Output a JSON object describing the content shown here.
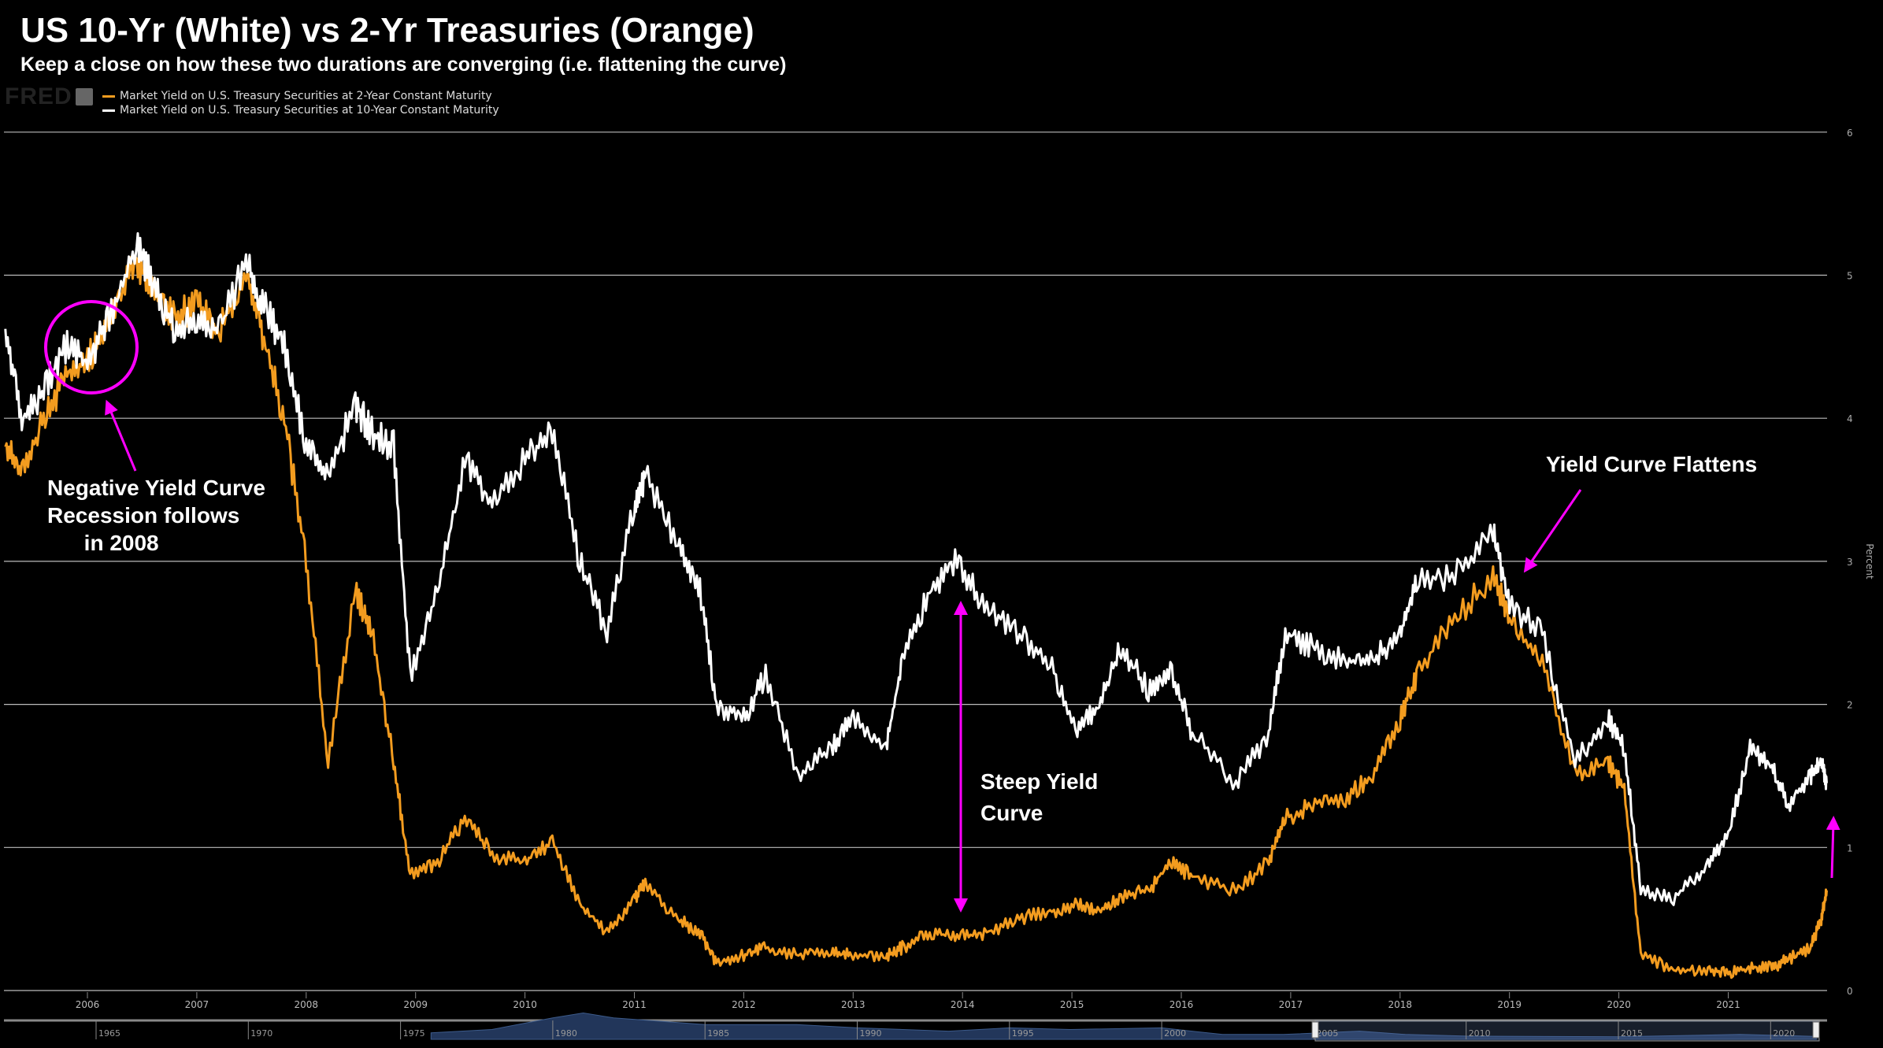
{
  "title": "US 10-Yr (White) vs 2-Yr Treasuries (Orange)",
  "subtitle": "Keep a close on how these two durations are converging (i.e. flattening the curve)",
  "logo": "FRED",
  "annotations": {
    "negative": "Negative Yield Curve\nRecession follows\n      in 2008",
    "flattens": "Yield Curve Flattens",
    "steep": "Steep Yield\nCurve"
  },
  "chart_data": {
    "type": "line",
    "title": "US 10-Yr (White) vs 2-Yr Treasuries (Orange)",
    "ylabel": "Percent",
    "ylim": [
      0,
      6
    ],
    "yticks": [
      "0",
      "1",
      "2",
      "3",
      "4",
      "5",
      "6"
    ],
    "xticks": [
      "2006",
      "2007",
      "2008",
      "2009",
      "2010",
      "2011",
      "2012",
      "2013",
      "2014",
      "2015",
      "2016",
      "2017",
      "2018",
      "2019",
      "2020",
      "2021"
    ],
    "navigator_ticks": [
      "1965",
      "1970",
      "1975",
      "1980",
      "1985",
      "1990",
      "1995",
      "2000",
      "2005",
      "2010",
      "2015",
      "2020"
    ],
    "grid": true,
    "legend_position": "top-left",
    "x": [
      2005.25,
      2005.4,
      2005.6,
      2005.8,
      2006.0,
      2006.2,
      2006.45,
      2006.6,
      2006.8,
      2007.0,
      2007.2,
      2007.45,
      2007.6,
      2007.8,
      2008.0,
      2008.2,
      2008.45,
      2008.6,
      2008.8,
      2008.95,
      2009.2,
      2009.45,
      2009.7,
      2010.0,
      2010.25,
      2010.5,
      2010.75,
      2011.0,
      2011.1,
      2011.4,
      2011.6,
      2011.75,
      2012.0,
      2012.2,
      2012.5,
      2012.8,
      2013.0,
      2013.3,
      2013.45,
      2013.7,
      2013.95,
      2014.2,
      2014.5,
      2014.8,
      2015.05,
      2015.25,
      2015.45,
      2015.7,
      2015.9,
      2016.1,
      2016.5,
      2016.8,
      2016.95,
      2017.2,
      2017.5,
      2017.75,
      2018.0,
      2018.15,
      2018.5,
      2018.85,
      2019.0,
      2019.3,
      2019.6,
      2019.9,
      2020.05,
      2020.2,
      2020.5,
      2020.8,
      2021.0,
      2021.2,
      2021.4,
      2021.55,
      2021.75,
      2021.85,
      2021.9
    ],
    "series": [
      {
        "name": "Market Yield on U.S. Treasury Securities at 2-Year Constant Maturity",
        "color": "#f39c1f",
        "values": [
          3.8,
          3.6,
          4.0,
          4.3,
          4.4,
          4.7,
          5.1,
          4.9,
          4.7,
          4.8,
          4.6,
          5.0,
          4.6,
          4.0,
          3.0,
          1.6,
          2.8,
          2.5,
          1.6,
          0.8,
          0.9,
          1.2,
          0.95,
          0.9,
          1.05,
          0.6,
          0.4,
          0.65,
          0.75,
          0.5,
          0.4,
          0.2,
          0.25,
          0.3,
          0.25,
          0.27,
          0.25,
          0.24,
          0.3,
          0.4,
          0.38,
          0.4,
          0.5,
          0.55,
          0.6,
          0.55,
          0.65,
          0.7,
          0.9,
          0.8,
          0.7,
          0.9,
          1.2,
          1.3,
          1.35,
          1.5,
          1.9,
          2.2,
          2.6,
          2.9,
          2.6,
          2.3,
          1.5,
          1.6,
          1.4,
          0.25,
          0.15,
          0.14,
          0.12,
          0.16,
          0.16,
          0.22,
          0.3,
          0.5,
          0.7
        ]
      },
      {
        "name": "Market Yield on U.S. Treasury Securities at 10-Year Constant Maturity",
        "color": "#ffffff",
        "values": [
          4.6,
          4.0,
          4.2,
          4.5,
          4.4,
          4.7,
          5.2,
          4.95,
          4.6,
          4.7,
          4.6,
          5.1,
          4.8,
          4.5,
          3.8,
          3.6,
          4.1,
          3.9,
          3.8,
          2.2,
          2.8,
          3.7,
          3.4,
          3.7,
          3.9,
          3.0,
          2.5,
          3.4,
          3.6,
          3.1,
          2.8,
          2.0,
          1.9,
          2.2,
          1.5,
          1.7,
          1.9,
          1.7,
          2.3,
          2.8,
          3.0,
          2.7,
          2.5,
          2.3,
          1.8,
          2.0,
          2.4,
          2.1,
          2.25,
          1.8,
          1.45,
          1.8,
          2.5,
          2.4,
          2.3,
          2.3,
          2.5,
          2.85,
          2.9,
          3.2,
          2.7,
          2.5,
          1.6,
          1.9,
          1.7,
          0.7,
          0.65,
          0.85,
          1.1,
          1.7,
          1.55,
          1.3,
          1.5,
          1.6,
          1.45
        ]
      }
    ]
  }
}
